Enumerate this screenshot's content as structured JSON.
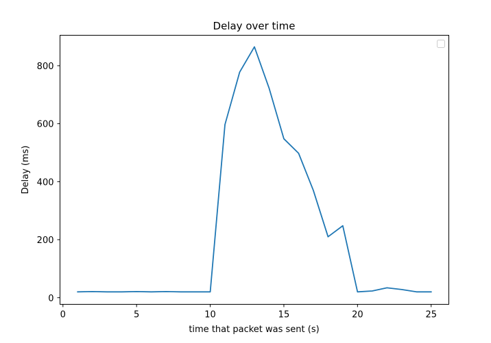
{
  "chart_data": {
    "type": "line",
    "title": "Delay over time",
    "xlabel": "time that packet was sent (s)",
    "ylabel": "Delay (ms)",
    "xlim": [
      -0.2,
      26.2
    ],
    "ylim": [
      -23,
      905
    ],
    "xticks": [
      0,
      5,
      10,
      15,
      20,
      25
    ],
    "yticks": [
      0,
      200,
      400,
      600,
      800
    ],
    "grid": false,
    "legend": "top-right (empty)",
    "series": [
      {
        "color": "#1f77b4",
        "x": [
          1,
          2,
          3,
          4,
          5,
          6,
          7,
          8,
          9,
          10,
          11,
          12,
          13,
          14,
          15,
          16,
          17,
          18,
          19,
          20,
          21,
          22,
          23,
          24,
          25
        ],
        "y": [
          20,
          21,
          20,
          20,
          21,
          20,
          21,
          20,
          20,
          20,
          597,
          778,
          865,
          722,
          548,
          498,
          370,
          210,
          248,
          20,
          23,
          34,
          28,
          20,
          20
        ]
      }
    ]
  }
}
